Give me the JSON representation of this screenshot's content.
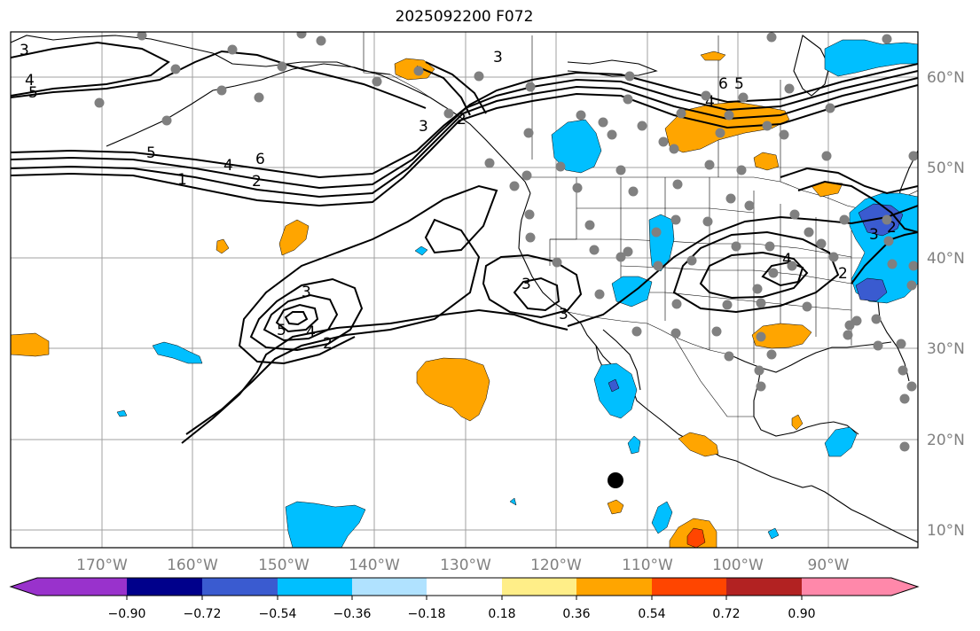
{
  "title": "2025092200 F072",
  "map": {
    "lon_labels": [
      "170°W",
      "160°W",
      "150°W",
      "140°W",
      "130°W",
      "120°W",
      "110°W",
      "100°W",
      "90°W"
    ],
    "lat_labels": [
      "60°N",
      "50°N",
      "40°N",
      "30°N",
      "20°N",
      "10°N"
    ],
    "label_color": "#808080",
    "contour_labels": [
      "3",
      "4",
      "5",
      "5",
      "1",
      "2",
      "4",
      "6",
      "3",
      "2",
      "4",
      "6",
      "5",
      "3",
      "5",
      "4",
      "2",
      "3",
      "3",
      "3",
      "2",
      "4",
      "3",
      "2"
    ],
    "station_dot_color": "#808080",
    "marker_color": "#000000"
  },
  "colorbar": {
    "tick_labels": [
      "−0.90",
      "−0.72",
      "−0.54",
      "−0.36",
      "−0.18",
      "0.18",
      "0.36",
      "0.54",
      "0.72",
      "0.90"
    ],
    "colors": [
      "#9932cc",
      "#00008b",
      "#3a5bd0",
      "#00bfff",
      "#b0e2ff",
      "#ffffff",
      "#ffee88",
      "#ffa500",
      "#ff4500",
      "#b22222",
      "#ff88aa"
    ]
  }
}
